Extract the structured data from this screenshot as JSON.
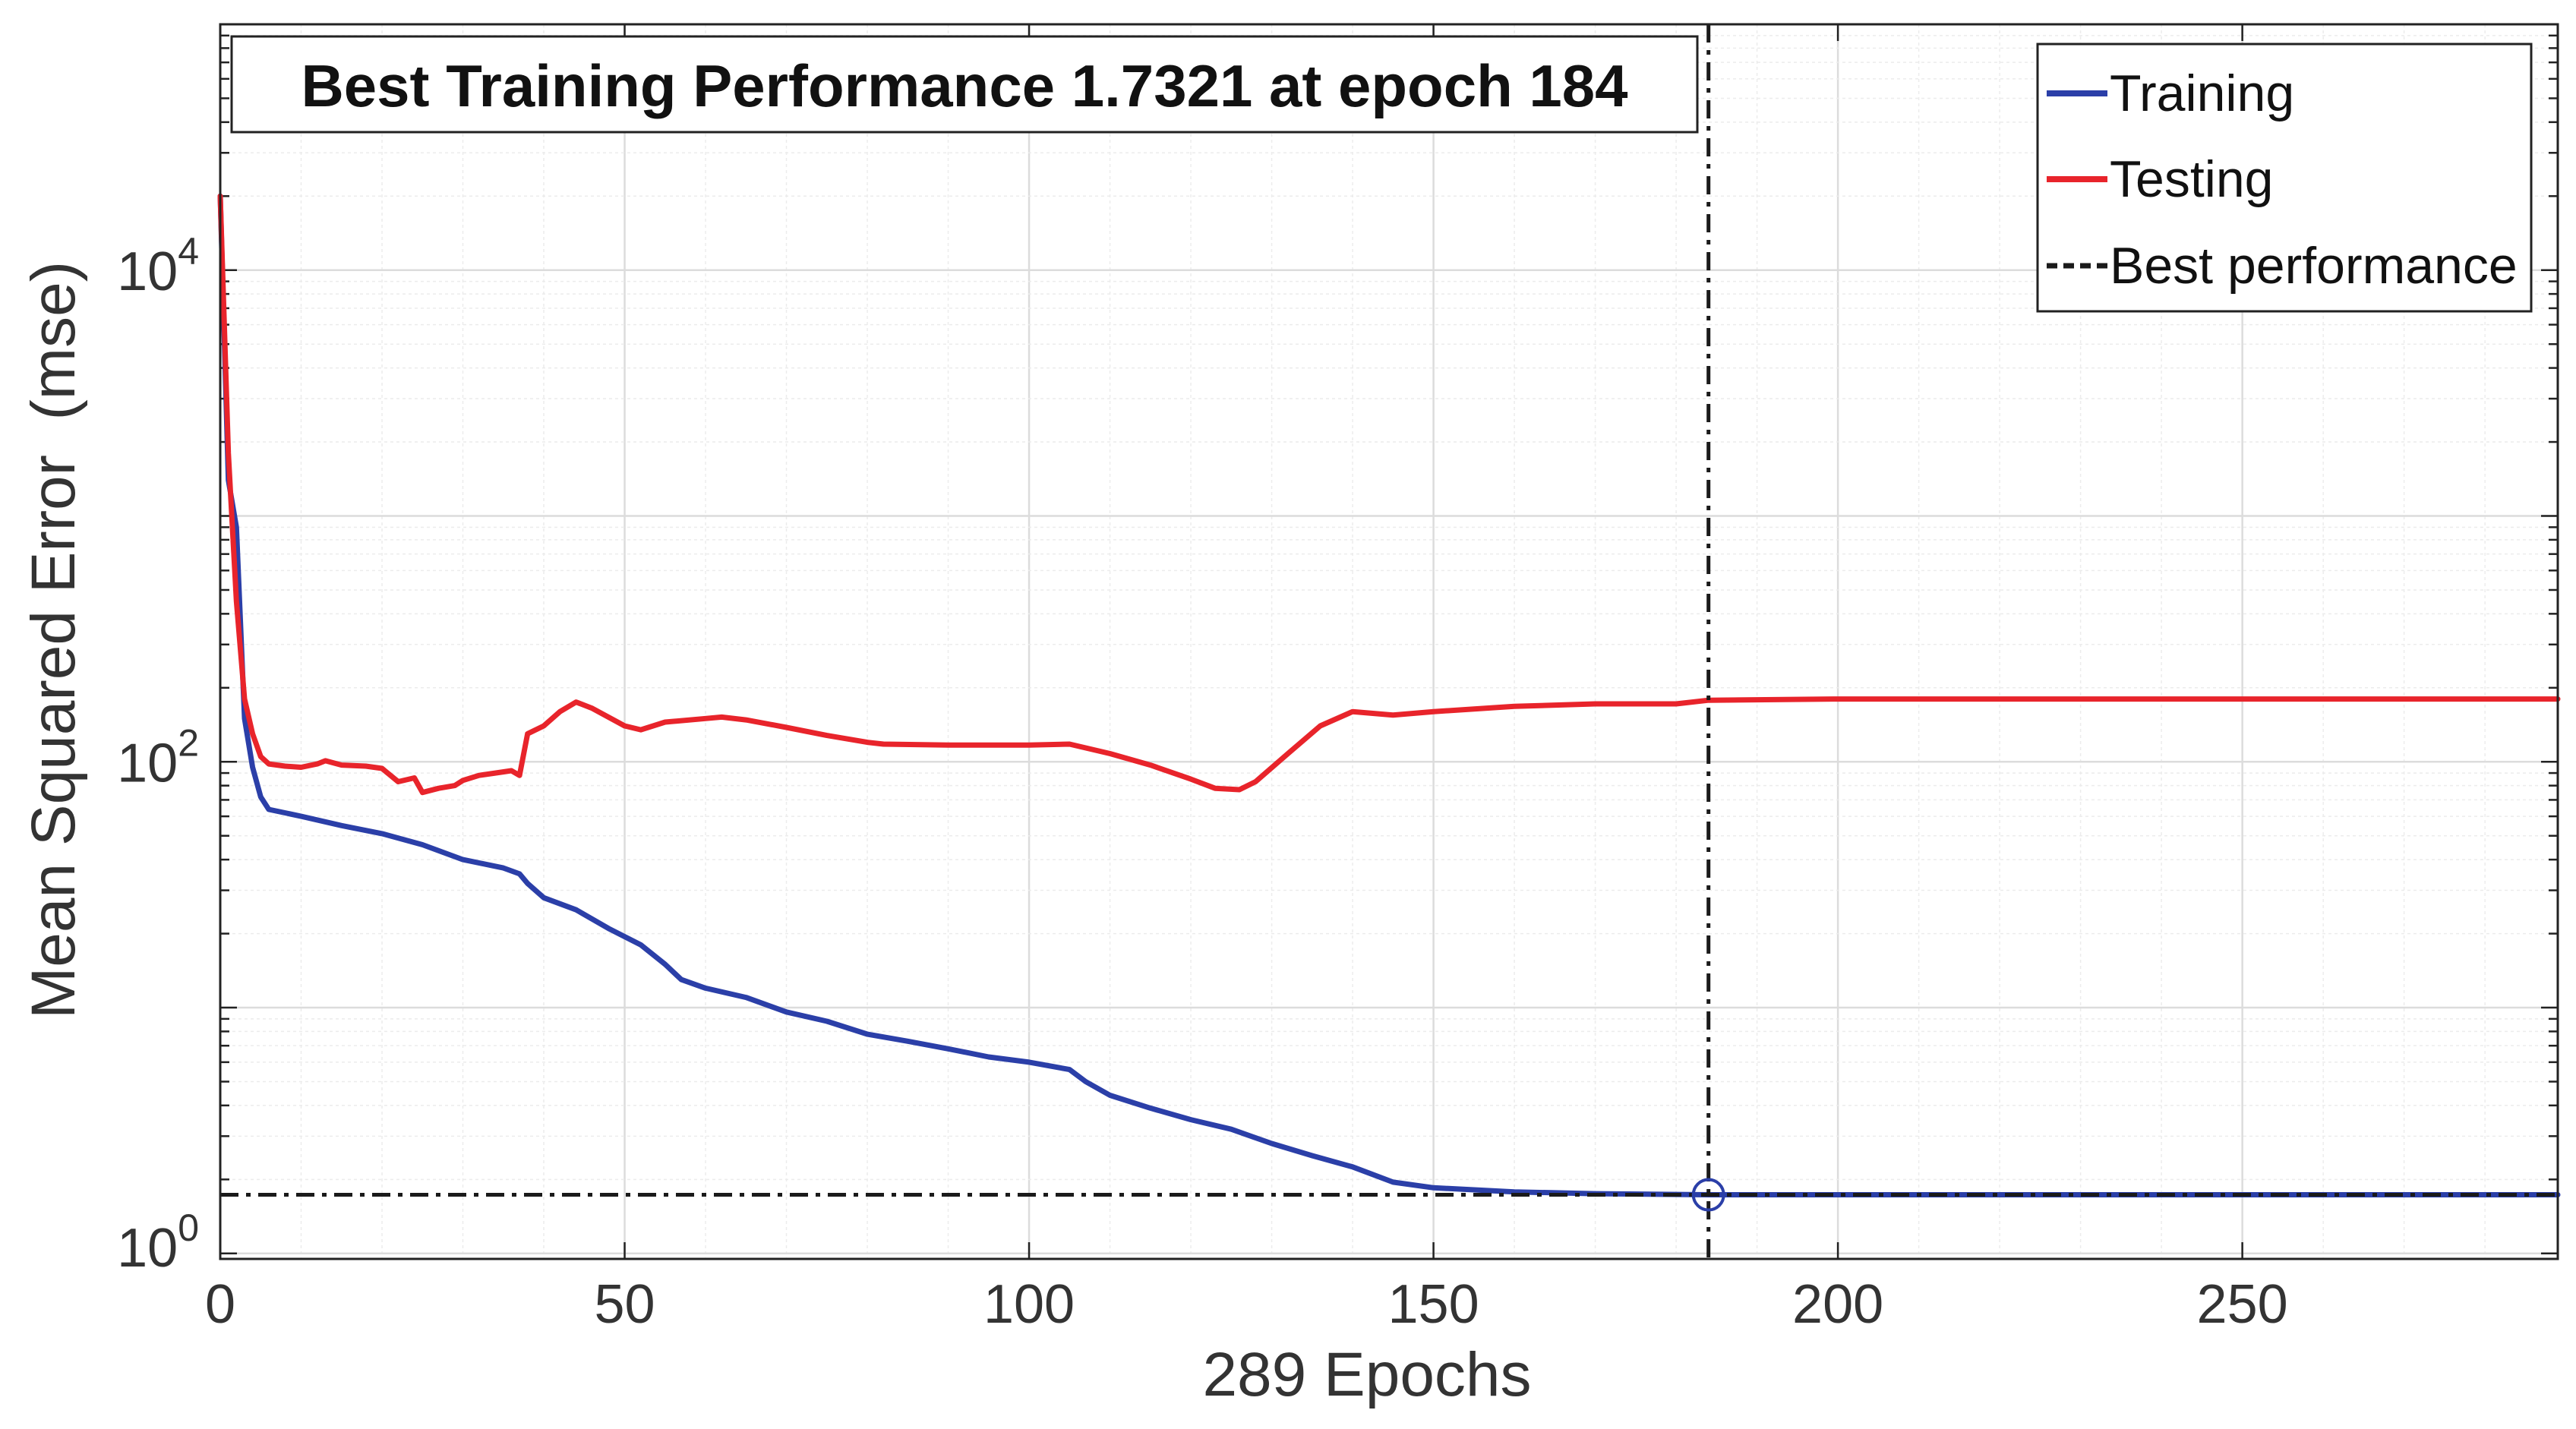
{
  "chart_data": {
    "type": "line",
    "title": "Best Training Performance 1.7321 at epoch 184",
    "xlabel": "289 Epochs",
    "ylabel": "Mean Squared Error  (mse)",
    "xscale": "linear",
    "yscale": "log",
    "xlim": [
      0,
      289
    ],
    "ylim": [
      0.95,
      100000
    ],
    "xticks": [
      0,
      50,
      100,
      150,
      200,
      250
    ],
    "xtick_labels": [
      "0",
      "50",
      "100",
      "150",
      "200",
      "250"
    ],
    "yticks": [
      1,
      100,
      10000
    ],
    "ytick_labels": [
      {
        "base": "10",
        "exp": "0"
      },
      {
        "base": "10",
        "exp": "2"
      },
      {
        "base": "10",
        "exp": "4"
      }
    ],
    "grid": true,
    "legend_position": "top-right",
    "best": {
      "epoch": 184,
      "value": 1.7321
    },
    "series": [
      {
        "name": "Training",
        "color": "#2b3fa8",
        "points": [
          [
            0,
            20000
          ],
          [
            1,
            1400
          ],
          [
            2,
            900
          ],
          [
            3,
            150
          ],
          [
            4,
            95
          ],
          [
            5,
            72
          ],
          [
            6,
            64
          ],
          [
            8,
            62
          ],
          [
            10,
            60
          ],
          [
            12,
            58
          ],
          [
            15,
            55
          ],
          [
            20,
            51
          ],
          [
            25,
            46
          ],
          [
            30,
            40
          ],
          [
            35,
            37
          ],
          [
            37,
            35
          ],
          [
            38,
            32
          ],
          [
            40,
            28
          ],
          [
            44,
            25
          ],
          [
            48,
            21
          ],
          [
            52,
            18
          ],
          [
            55,
            15
          ],
          [
            57,
            13
          ],
          [
            60,
            12
          ],
          [
            65,
            11
          ],
          [
            70,
            9.6
          ],
          [
            75,
            8.8
          ],
          [
            80,
            7.8
          ],
          [
            85,
            7.3
          ],
          [
            90,
            6.8
          ],
          [
            95,
            6.3
          ],
          [
            100,
            6.0
          ],
          [
            105,
            5.6
          ],
          [
            107,
            5.0
          ],
          [
            110,
            4.4
          ],
          [
            115,
            3.9
          ],
          [
            120,
            3.5
          ],
          [
            125,
            3.2
          ],
          [
            130,
            2.8
          ],
          [
            135,
            2.5
          ],
          [
            140,
            2.25
          ],
          [
            145,
            1.95
          ],
          [
            150,
            1.85
          ],
          [
            160,
            1.78
          ],
          [
            170,
            1.75
          ],
          [
            184,
            1.7321
          ],
          [
            200,
            1.7321
          ],
          [
            250,
            1.7321
          ],
          [
            289,
            1.7321
          ]
        ]
      },
      {
        "name": "Testing",
        "color": "#e8242b",
        "points": [
          [
            0,
            20000
          ],
          [
            1,
            1800
          ],
          [
            2,
            450
          ],
          [
            3,
            180
          ],
          [
            4,
            130
          ],
          [
            5,
            105
          ],
          [
            6,
            98
          ],
          [
            8,
            96
          ],
          [
            10,
            95
          ],
          [
            12,
            98
          ],
          [
            13,
            101
          ],
          [
            15,
            97
          ],
          [
            18,
            96
          ],
          [
            20,
            94
          ],
          [
            22,
            83
          ],
          [
            24,
            86
          ],
          [
            25,
            75
          ],
          [
            27,
            78
          ],
          [
            29,
            80
          ],
          [
            30,
            84
          ],
          [
            32,
            88
          ],
          [
            34,
            90
          ],
          [
            36,
            92
          ],
          [
            37,
            88
          ],
          [
            38,
            130
          ],
          [
            40,
            140
          ],
          [
            42,
            160
          ],
          [
            44,
            175
          ],
          [
            46,
            165
          ],
          [
            50,
            140
          ],
          [
            52,
            135
          ],
          [
            55,
            145
          ],
          [
            60,
            150
          ],
          [
            62,
            152
          ],
          [
            65,
            148
          ],
          [
            70,
            138
          ],
          [
            75,
            128
          ],
          [
            80,
            120
          ],
          [
            82,
            118
          ],
          [
            90,
            117
          ],
          [
            100,
            117
          ],
          [
            105,
            118
          ],
          [
            110,
            108
          ],
          [
            115,
            97
          ],
          [
            120,
            85
          ],
          [
            123,
            78
          ],
          [
            126,
            77
          ],
          [
            128,
            83
          ],
          [
            132,
            108
          ],
          [
            136,
            140
          ],
          [
            140,
            160
          ],
          [
            145,
            155
          ],
          [
            150,
            160
          ],
          [
            160,
            168
          ],
          [
            170,
            172
          ],
          [
            180,
            172
          ],
          [
            184,
            178
          ],
          [
            200,
            180
          ],
          [
            250,
            180
          ],
          [
            289,
            180
          ]
        ]
      },
      {
        "name": "Best performance",
        "color": "#1a1a1a",
        "style": "dash-dot"
      }
    ]
  }
}
